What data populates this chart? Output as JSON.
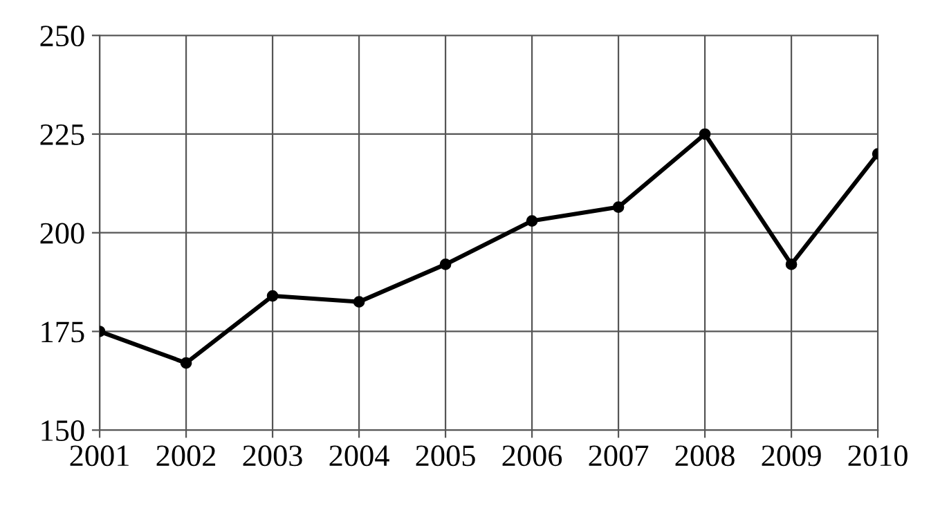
{
  "chart_data": {
    "type": "line",
    "categories": [
      "2001",
      "2002",
      "2003",
      "2004",
      "2005",
      "2006",
      "2007",
      "2008",
      "2009",
      "2010"
    ],
    "values": [
      175,
      167,
      184,
      182.5,
      192,
      203,
      206.5,
      225,
      192,
      220
    ],
    "color": "#000000",
    "ylim": [
      150,
      250
    ],
    "yticks": [
      150,
      175,
      200,
      225,
      250
    ],
    "grid": true,
    "marker": "circle",
    "line_style": "solid"
  }
}
